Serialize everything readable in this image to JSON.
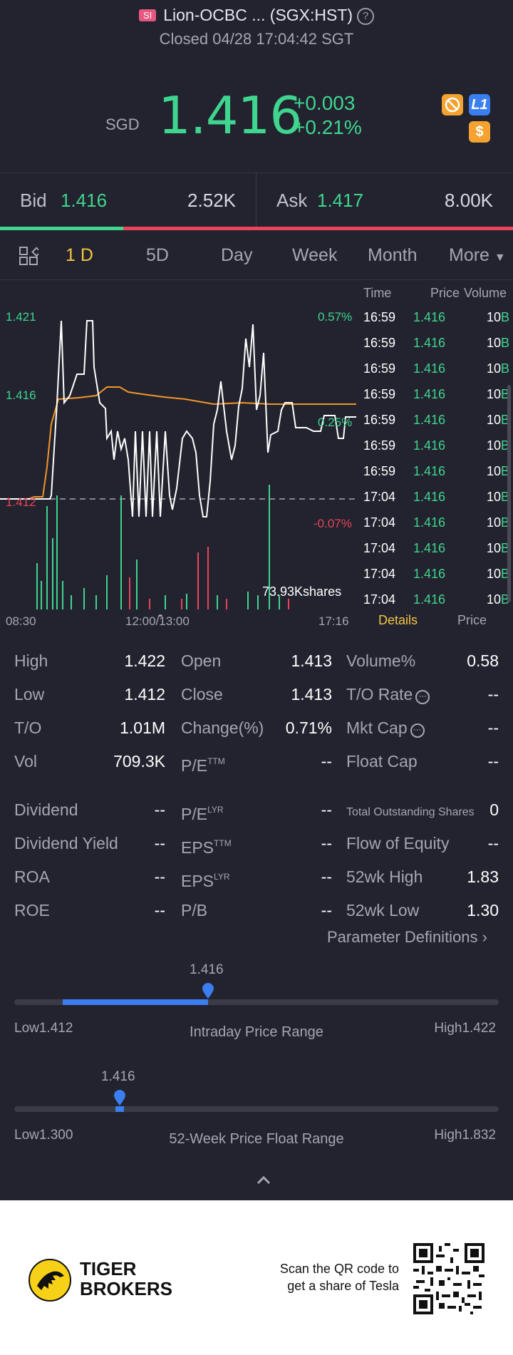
{
  "header": {
    "badge": "SI",
    "title": "Lion-OCBC ... (SGX:HST)",
    "help": "?",
    "status": "Closed 04/28 17:04:42 SGT",
    "currency": "SGD",
    "price": "1.416",
    "change": "+0.003",
    "change_pct": "+0.21%",
    "icon_level": "L1",
    "icon_dollar": "$",
    "colors": {
      "up": "#3fd58e",
      "down": "#e94458",
      "accent": "#f5c542",
      "brand_blue": "#3a7ef0"
    }
  },
  "bidask": {
    "bid_label": "Bid",
    "bid_price": "1.416",
    "bid_volume": "2.52K",
    "ask_label": "Ask",
    "ask_price": "1.417",
    "ask_volume": "8.00K",
    "bid_ratio": 0.24
  },
  "tabs": [
    "1 D",
    "5D",
    "Day",
    "Week",
    "Month",
    "More"
  ],
  "active_tab": "1 D",
  "chart": {
    "left_ticks": [
      "1.421",
      "1.416",
      "1.412"
    ],
    "right_ticks": [
      "0.57%",
      "0.25%",
      "-0.07%"
    ],
    "volume_label": "73.93Kshares",
    "time_labels": [
      "08:30",
      "12:00/13:00",
      "17:16"
    ]
  },
  "chart_data": {
    "type": "line",
    "x_labels": [
      "08:30",
      "12:00/13:00",
      "17:16"
    ],
    "ylim": [
      1.412,
      1.421
    ],
    "prev_close": 1.413,
    "series": []
  },
  "trades": {
    "headers": {
      "time": "Time",
      "price": "Price",
      "volume": "Volume"
    },
    "rows": [
      {
        "time": "16:59",
        "price": "1.416",
        "vol": "10",
        "side": "B"
      },
      {
        "time": "16:59",
        "price": "1.416",
        "vol": "10",
        "side": "B"
      },
      {
        "time": "16:59",
        "price": "1.416",
        "vol": "10",
        "side": "B"
      },
      {
        "time": "16:59",
        "price": "1.416",
        "vol": "10",
        "side": "B"
      },
      {
        "time": "16:59",
        "price": "1.416",
        "vol": "10",
        "side": "B"
      },
      {
        "time": "16:59",
        "price": "1.416",
        "vol": "10",
        "side": "B"
      },
      {
        "time": "16:59",
        "price": "1.416",
        "vol": "10",
        "side": "B"
      },
      {
        "time": "17:04",
        "price": "1.416",
        "vol": "10",
        "side": "B"
      },
      {
        "time": "17:04",
        "price": "1.416",
        "vol": "10",
        "side": "B"
      },
      {
        "time": "17:04",
        "price": "1.416",
        "vol": "10",
        "side": "B"
      },
      {
        "time": "17:04",
        "price": "1.416",
        "vol": "10",
        "side": "B"
      },
      {
        "time": "17:04",
        "price": "1.416",
        "vol": "10",
        "side": "B"
      }
    ],
    "details_tab": "Details",
    "price_tab": "Price"
  },
  "stats": {
    "high": {
      "label": "High",
      "value": "1.422"
    },
    "open": {
      "label": "Open",
      "value": "1.413"
    },
    "volume_pct": {
      "label": "Volume%",
      "value": "0.58"
    },
    "low": {
      "label": "Low",
      "value": "1.412"
    },
    "close": {
      "label": "Close",
      "value": "1.413"
    },
    "to_rate": {
      "label": "T/O Rate",
      "value": "--"
    },
    "to": {
      "label": "T/O",
      "value": "1.01M"
    },
    "change_pct": {
      "label": "Change(%)",
      "value": "0.71%"
    },
    "mkt_cap": {
      "label": "Mkt Cap",
      "value": "--"
    },
    "vol": {
      "label": "Vol",
      "value": "709.3K"
    },
    "pe_ttm": {
      "label": "P/E",
      "sup": "TTM",
      "value": "--"
    },
    "float_cap": {
      "label": "Float Cap",
      "value": "--"
    },
    "dividend": {
      "label": "Dividend",
      "value": "--"
    },
    "pe_lyr": {
      "label": "P/E",
      "sup": "LYR",
      "value": "--"
    },
    "total_shares": {
      "label": "Total Outstanding Shares",
      "value": "0"
    },
    "dividend_yield": {
      "label": "Dividend Yield",
      "value": "--"
    },
    "eps_ttm": {
      "label": "EPS",
      "sup": "TTM",
      "value": "--"
    },
    "flow_equity": {
      "label": "Flow of Equity",
      "value": "--"
    },
    "roa": {
      "label": "ROA",
      "value": "--"
    },
    "eps_lyr": {
      "label": "EPS",
      "sup": "LYR",
      "value": "--"
    },
    "wk52_high": {
      "label": "52wk High",
      "value": "1.83"
    },
    "roe": {
      "label": "ROE",
      "value": "--"
    },
    "pb": {
      "label": "P/B",
      "value": "--"
    },
    "wk52_low": {
      "label": "52wk Low",
      "value": "1.30"
    }
  },
  "param_def": "Parameter Definitions",
  "intraday_range": {
    "value": "1.416",
    "low": "Low1.412",
    "high": "High1.422",
    "title": "Intraday Price Range",
    "fill_start": 0.1,
    "fill_end": 0.4
  },
  "week52_range": {
    "value": "1.416",
    "low": "Low1.300",
    "high": "High1.832",
    "title": "52-Week Price Float Range",
    "position": 0.22
  },
  "footer": {
    "brand_line1": "TIGER",
    "brand_line2": "BROKERS",
    "scan_line1": "Scan the QR code to",
    "scan_line2": "get a share of Tesla"
  }
}
